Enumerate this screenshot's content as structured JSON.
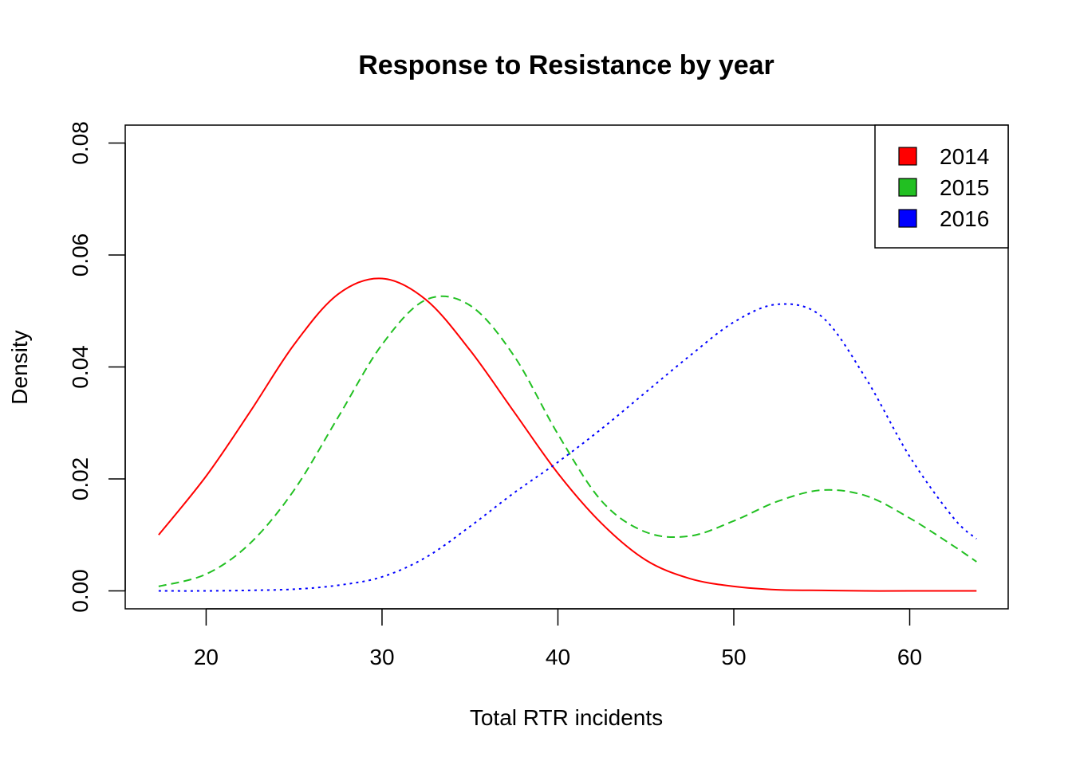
{
  "chart_data": {
    "type": "line",
    "title": "Response to Resistance by year",
    "xlabel": "Total RTR incidents",
    "ylabel": "Density",
    "xlim": [
      15.4,
      65.6
    ],
    "ylim": [
      -0.0032,
      0.0832
    ],
    "x_ticks": [
      20,
      30,
      40,
      50,
      60
    ],
    "x_tick_labels": [
      "20",
      "30",
      "40",
      "50",
      "60"
    ],
    "y_ticks": [
      0.0,
      0.02,
      0.04,
      0.06,
      0.08
    ],
    "y_tick_labels": [
      "0.00",
      "0.02",
      "0.04",
      "0.06",
      "0.08"
    ],
    "grid": false,
    "legend_position": "top-right",
    "legend": [
      "2014",
      "2015",
      "2016"
    ],
    "x": [
      17.3,
      20,
      22.5,
      25,
      27.5,
      30,
      32.5,
      35,
      37.5,
      40,
      42.5,
      45,
      47.5,
      50,
      52.5,
      55,
      57.5,
      60,
      62.5,
      63.8
    ],
    "series": [
      {
        "name": "2014",
        "color": "#ff0000",
        "dash": "solid",
        "values": [
          0.01,
          0.0205,
          0.032,
          0.044,
          0.053,
          0.0558,
          0.052,
          0.043,
          0.032,
          0.021,
          0.012,
          0.0055,
          0.0022,
          0.0008,
          0.0002,
          0.0001,
          0.0,
          0.0,
          0.0,
          0.0
        ]
      },
      {
        "name": "2015",
        "color": "#22c022",
        "dash": "dashed",
        "values": [
          0.0008,
          0.003,
          0.0085,
          0.018,
          0.031,
          0.044,
          0.052,
          0.051,
          0.042,
          0.028,
          0.016,
          0.0105,
          0.0098,
          0.0125,
          0.016,
          0.018,
          0.017,
          0.013,
          0.008,
          0.0052
        ]
      },
      {
        "name": "2016",
        "color": "#0000ff",
        "dash": "dotted",
        "values": [
          0.0,
          0.0,
          0.0001,
          0.0003,
          0.001,
          0.0025,
          0.006,
          0.0115,
          0.0175,
          0.023,
          0.029,
          0.0355,
          0.042,
          0.048,
          0.0512,
          0.049,
          0.038,
          0.024,
          0.013,
          0.0093
        ]
      }
    ]
  }
}
